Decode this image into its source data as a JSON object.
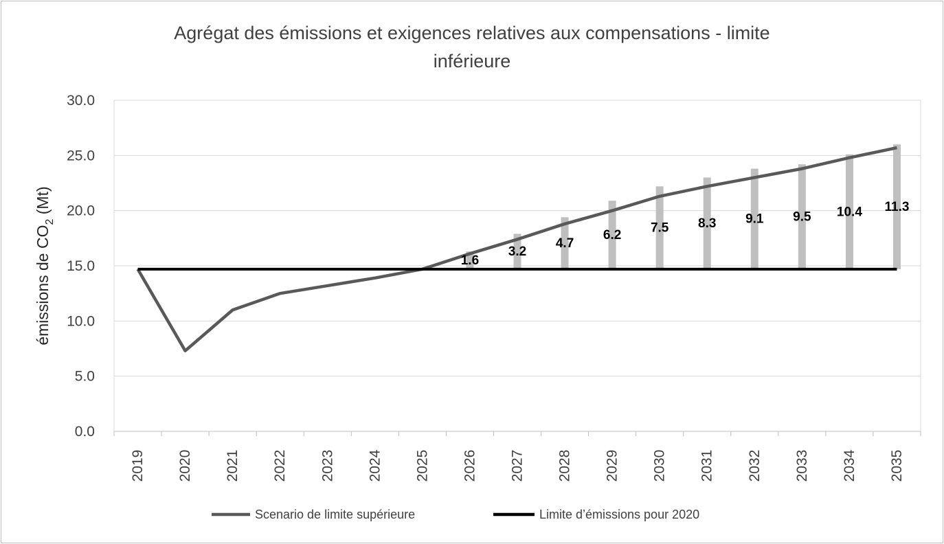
{
  "chart_data": {
    "type": "bar",
    "title": "Agrégat des émissions et exigences relatives aux compensations - limite inférieure",
    "title_lines": [
      "Agrégat des émissions et exigences relatives aux compensations - limite",
      "inférieure"
    ],
    "ylabel": "émissions de CO",
    "ylabel_sub": "2",
    "ylabel_suffix": " (Mt)",
    "xlabel": "",
    "ylim": [
      0,
      30
    ],
    "yticks": [
      "0.0",
      "5.0",
      "10.0",
      "15.0",
      "20.0",
      "25.0",
      "30.0"
    ],
    "categories": [
      "2019",
      "2020",
      "2021",
      "2022",
      "2023",
      "2024",
      "2025",
      "2026",
      "2027",
      "2028",
      "2029",
      "2030",
      "2031",
      "2032",
      "2033",
      "2034",
      "2035"
    ],
    "grid": true,
    "legend_position": "bottom",
    "series": [
      {
        "name": "Scenario de limite supérieure",
        "type": "line",
        "color": "#595959",
        "values": [
          14.7,
          7.3,
          11.0,
          12.5,
          13.2,
          13.9,
          14.7,
          16.1,
          17.4,
          18.8,
          20.0,
          21.3,
          22.2,
          23.0,
          23.8,
          24.8,
          25.7
        ]
      },
      {
        "name": "Limite d’émissions pour 2020",
        "type": "line",
        "color": "#000000",
        "values": [
          14.7,
          14.7,
          14.7,
          14.7,
          14.7,
          14.7,
          14.7,
          14.7,
          14.7,
          14.7,
          14.7,
          14.7,
          14.7,
          14.7,
          14.7,
          14.7,
          14.7
        ]
      }
    ],
    "offset_bars": {
      "color": "#bfbfbf",
      "base": 14.7,
      "categories": [
        "2026",
        "2027",
        "2028",
        "2029",
        "2030",
        "2031",
        "2032",
        "2033",
        "2034",
        "2035"
      ],
      "values": [
        1.6,
        3.2,
        4.7,
        6.2,
        7.5,
        8.3,
        9.1,
        9.5,
        10.4,
        11.3
      ],
      "labels": [
        "1.6",
        "3.2",
        "4.7",
        "6.2",
        "7.5",
        "8.3",
        "9.1",
        "9.5",
        "10.4",
        "11.3"
      ]
    }
  }
}
